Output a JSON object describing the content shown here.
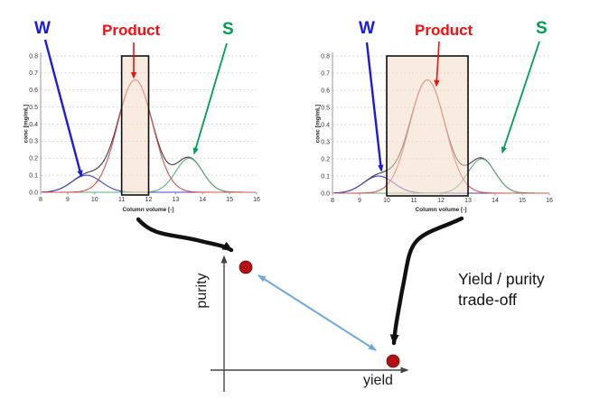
{
  "diagram": {
    "caption_line1": "Yield / purity",
    "caption_line2": "trade-off",
    "yield_axis_label": "yield",
    "purity_axis_label": "purity",
    "colors": {
      "point": "#b41212",
      "tradeoff_arrow": "#6fa8dc",
      "flow_arrow": "#111111",
      "axis": "#444444"
    }
  },
  "chart_data": [
    {
      "type": "line",
      "title": "",
      "xlabel": "Column volume [-]",
      "ylabel": "conc [mg/mL]",
      "xlim": [
        8,
        16
      ],
      "ylim": [
        0,
        0.8
      ],
      "grid": true,
      "x_tick_labels": [
        "8",
        "9",
        "10",
        "11",
        "12",
        "13",
        "14",
        "15",
        "16"
      ],
      "y_tick_labels": [
        "0.0",
        "0.1",
        "0.2",
        "0.3",
        "0.4",
        "0.5",
        "0.6",
        "0.7",
        "0.8"
      ],
      "series": [
        {
          "name": "W",
          "color": "#4343cf",
          "peak": {
            "center": 9.7,
            "sigma": 0.55,
            "height": 0.1
          }
        },
        {
          "name": "Product",
          "color": "#d94f4f",
          "peak": {
            "center": 11.5,
            "sigma": 0.65,
            "height": 0.66
          }
        },
        {
          "name": "S",
          "color": "#5fae7f",
          "peak": {
            "center": 13.5,
            "sigma": 0.5,
            "height": 0.2
          }
        }
      ],
      "total_curve": {
        "name": "total",
        "color": "#3a3a3a"
      },
      "collection_window": {
        "from": 11,
        "to": 12,
        "fill": "#f3ddc9",
        "border_color": "#111111",
        "cut_line_color": "#cc2222"
      },
      "annotations": [
        {
          "label": "W",
          "color": "#1a1ae0"
        },
        {
          "label": "Product",
          "color": "#f01010"
        },
        {
          "label": "S",
          "color": "#00a050"
        }
      ]
    },
    {
      "type": "line",
      "title": "",
      "xlabel": "Column volume [-]",
      "ylabel": "conc [mg/mL]",
      "xlim": [
        8,
        16
      ],
      "ylim": [
        0,
        0.8
      ],
      "grid": true,
      "x_tick_labels": [
        "8",
        "9",
        "10",
        "11",
        "12",
        "13",
        "14",
        "15",
        "16"
      ],
      "y_tick_labels": [
        "0.0",
        "0.1",
        "0.2",
        "0.3",
        "0.4",
        "0.5",
        "0.6",
        "0.7",
        "0.8"
      ],
      "series": [
        {
          "name": "W",
          "color": "#4343cf",
          "peak": {
            "center": 9.7,
            "sigma": 0.55,
            "height": 0.1
          }
        },
        {
          "name": "Product",
          "color": "#d94f4f",
          "peak": {
            "center": 11.5,
            "sigma": 0.65,
            "height": 0.66
          }
        },
        {
          "name": "S",
          "color": "#5fae7f",
          "peak": {
            "center": 13.5,
            "sigma": 0.5,
            "height": 0.2
          }
        }
      ],
      "total_curve": {
        "name": "total",
        "color": "#3a3a3a"
      },
      "collection_window": {
        "from": 10,
        "to": 13,
        "fill": "#f3ddc9",
        "border_color": "#111111",
        "cut_line_color": "#cc2222"
      },
      "annotations": [
        {
          "label": "W",
          "color": "#1a1ae0"
        },
        {
          "label": "Product",
          "color": "#f01010"
        },
        {
          "label": "S",
          "color": "#00a050"
        }
      ]
    }
  ]
}
